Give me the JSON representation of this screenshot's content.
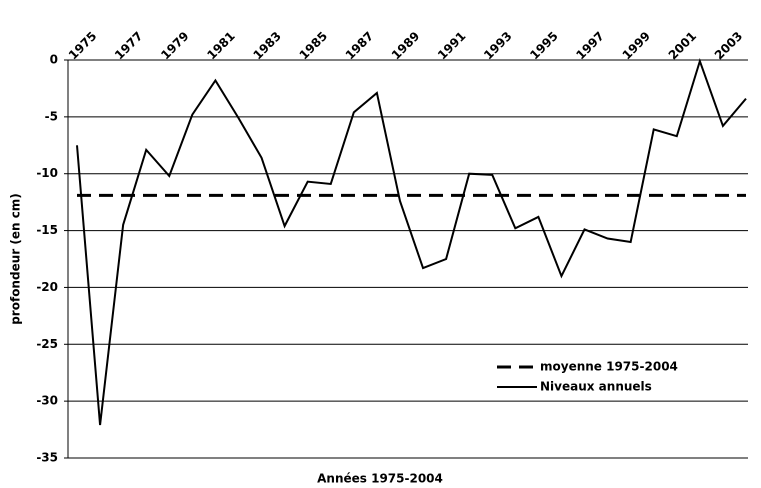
{
  "chart_data": {
    "type": "line",
    "x_label": "Années 1975-2004",
    "y_label": "profondeur (en cm)",
    "categories": [
      "1975",
      null,
      "1977",
      null,
      "1979",
      null,
      "1981",
      null,
      "1983",
      null,
      "1985",
      null,
      "1987",
      null,
      "1989",
      null,
      "1991",
      null,
      "1993",
      null,
      "1995",
      null,
      "1997",
      null,
      "1999",
      null,
      "2001",
      null,
      "2003",
      null
    ],
    "series": [
      {
        "name": "moyenne 1975-2004",
        "color": "#000000",
        "dashed": true,
        "values": [
          -11.9,
          -11.9,
          -11.9,
          -11.9,
          -11.9,
          -11.9,
          -11.9,
          -11.9,
          -11.9,
          -11.9,
          -11.9,
          -11.9,
          -11.9,
          -11.9,
          -11.9,
          -11.9,
          -11.9,
          -11.9,
          -11.9,
          -11.9,
          -11.9,
          -11.9,
          -11.9,
          -11.9,
          -11.9,
          -11.9,
          -11.9,
          -11.9,
          -11.9,
          -11.9
        ]
      },
      {
        "name": "Niveaux annuels",
        "color": "#000000",
        "dashed": false,
        "values": [
          -7.5,
          -32.1,
          -14.5,
          -7.9,
          -10.2,
          -4.8,
          -1.8,
          -5.1,
          -8.6,
          -14.6,
          -10.7,
          -10.9,
          -4.6,
          -2.9,
          -12.4,
          -18.3,
          -17.5,
          -10.0,
          -10.1,
          -14.8,
          -13.8,
          -19.0,
          -14.9,
          -15.7,
          -16.0,
          -6.1,
          -6.7,
          -0.1,
          -5.8,
          -3.4
        ]
      }
    ],
    "ylim": [
      -35,
      0
    ],
    "yticks": [
      -35,
      -30,
      -25,
      -20,
      -15,
      -10,
      -5,
      0
    ],
    "grid": true
  }
}
